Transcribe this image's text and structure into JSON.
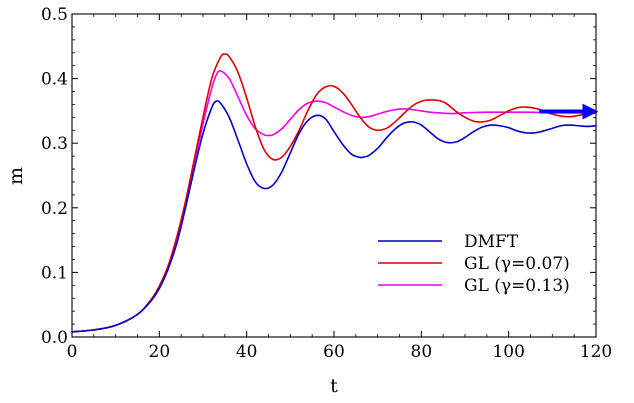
{
  "chart_data": {
    "type": "line",
    "xlabel": "t",
    "ylabel": "m",
    "xlim": [
      0,
      120
    ],
    "ylim": [
      0,
      0.5
    ],
    "xticks": [
      "0",
      "20",
      "40",
      "60",
      "80",
      "100",
      "120"
    ],
    "yticks": [
      "0.0",
      "0.1",
      "0.2",
      "0.3",
      "0.4",
      "0.5"
    ],
    "grid": false,
    "legend_position": "bottom-right",
    "series": [
      {
        "name": "DMFT",
        "color": "#0000cc",
        "x": [
          0,
          5,
          10,
          15,
          18,
          20,
          22,
          24,
          26,
          28,
          30,
          32,
          33,
          34,
          36,
          38,
          40,
          42,
          44,
          46,
          48,
          50,
          52,
          54,
          56,
          58,
          60,
          62,
          64,
          66,
          67,
          68,
          70,
          72,
          74,
          76,
          78,
          80,
          82,
          84,
          86,
          88,
          90,
          92,
          94,
          96,
          98,
          100,
          102,
          104,
          106,
          108,
          110,
          112,
          114,
          116,
          118,
          120
        ],
        "y": [
          0.008,
          0.011,
          0.018,
          0.035,
          0.055,
          0.075,
          0.105,
          0.145,
          0.2,
          0.26,
          0.315,
          0.355,
          0.365,
          0.362,
          0.34,
          0.305,
          0.268,
          0.24,
          0.23,
          0.235,
          0.255,
          0.285,
          0.315,
          0.335,
          0.343,
          0.338,
          0.318,
          0.298,
          0.283,
          0.278,
          0.279,
          0.281,
          0.292,
          0.308,
          0.322,
          0.331,
          0.333,
          0.328,
          0.317,
          0.306,
          0.301,
          0.302,
          0.309,
          0.318,
          0.325,
          0.328,
          0.327,
          0.324,
          0.319,
          0.316,
          0.316,
          0.319,
          0.323,
          0.327,
          0.328,
          0.327,
          0.326,
          0.327
        ]
      },
      {
        "name": "GL (γ=0.07)",
        "color": "#e00000",
        "x": [
          0,
          5,
          10,
          15,
          18,
          20,
          22,
          24,
          26,
          28,
          30,
          32,
          34,
          35,
          36,
          38,
          40,
          42,
          44,
          46,
          48,
          50,
          52,
          54,
          56,
          58,
          60,
          62,
          64,
          66,
          68,
          70,
          72,
          74,
          76,
          78,
          80,
          82,
          84,
          85,
          86,
          88,
          90,
          92,
          94,
          96,
          98,
          100,
          102,
          104,
          106,
          108,
          110,
          112,
          114,
          116,
          118,
          120
        ],
        "y": [
          0.008,
          0.011,
          0.018,
          0.035,
          0.057,
          0.079,
          0.11,
          0.155,
          0.21,
          0.275,
          0.34,
          0.4,
          0.433,
          0.438,
          0.434,
          0.41,
          0.37,
          0.325,
          0.29,
          0.275,
          0.278,
          0.295,
          0.32,
          0.35,
          0.375,
          0.387,
          0.388,
          0.378,
          0.36,
          0.34,
          0.325,
          0.32,
          0.323,
          0.333,
          0.346,
          0.358,
          0.365,
          0.367,
          0.366,
          0.364,
          0.36,
          0.349,
          0.34,
          0.334,
          0.333,
          0.336,
          0.343,
          0.35,
          0.355,
          0.356,
          0.354,
          0.35,
          0.345,
          0.342,
          0.341,
          0.343,
          0.345,
          0.347
        ]
      },
      {
        "name": "GL (γ=0.13)",
        "color": "#ee00ee",
        "x": [
          0,
          5,
          10,
          15,
          18,
          20,
          22,
          24,
          26,
          28,
          30,
          32,
          33,
          34,
          36,
          38,
          40,
          42,
          44,
          45,
          46,
          48,
          50,
          52,
          54,
          56,
          58,
          60,
          62,
          64,
          66,
          68,
          70,
          72,
          74,
          76,
          78,
          80,
          82,
          84,
          86,
          88,
          90,
          95,
          100,
          105,
          110,
          115,
          120
        ],
        "y": [
          0.008,
          0.011,
          0.018,
          0.035,
          0.056,
          0.077,
          0.108,
          0.15,
          0.205,
          0.27,
          0.33,
          0.385,
          0.405,
          0.412,
          0.4,
          0.372,
          0.343,
          0.322,
          0.313,
          0.312,
          0.313,
          0.322,
          0.337,
          0.352,
          0.362,
          0.365,
          0.363,
          0.356,
          0.349,
          0.343,
          0.34,
          0.341,
          0.345,
          0.349,
          0.352,
          0.353,
          0.352,
          0.35,
          0.348,
          0.347,
          0.346,
          0.346,
          0.347,
          0.348,
          0.348,
          0.348,
          0.347,
          0.347,
          0.347
        ]
      }
    ],
    "annotations": [
      {
        "kind": "arrow",
        "color": "#0000ff",
        "x_from": 107,
        "x_to": 120,
        "y": 0.349
      }
    ]
  }
}
